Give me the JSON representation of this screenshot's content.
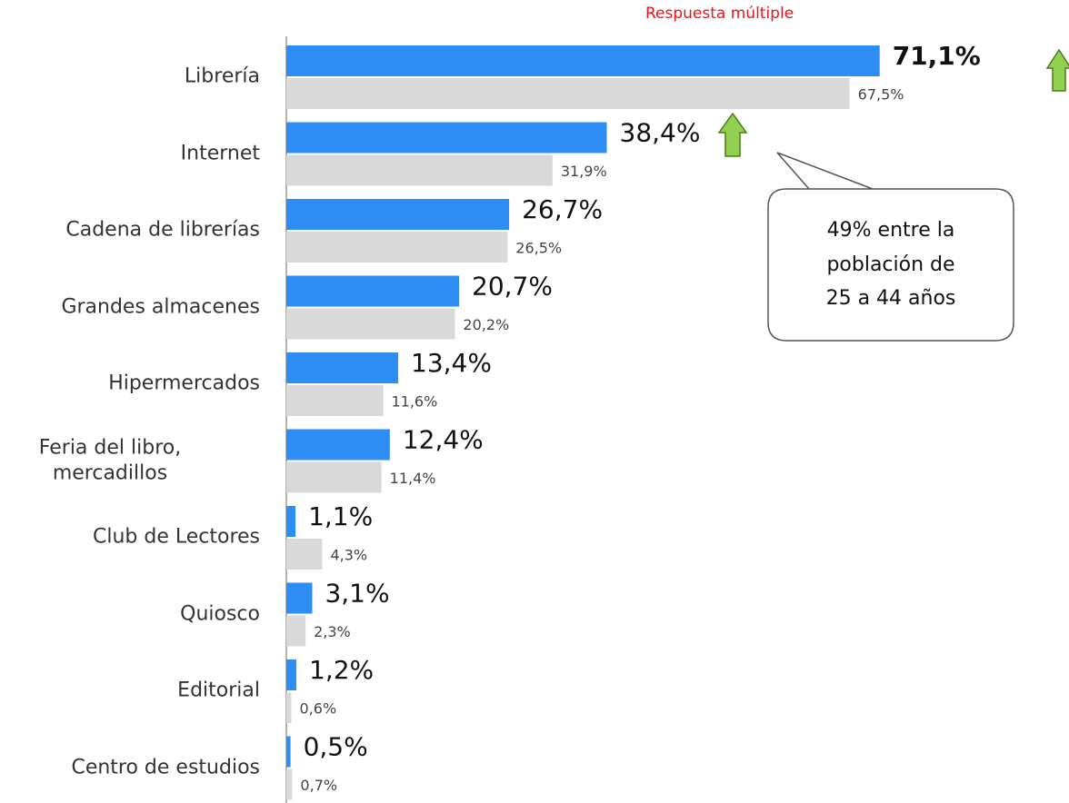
{
  "chart_data": {
    "type": "barh",
    "annotations": [
      "Respuesta múltiple",
      "49% entre la\npoblación de\n25 a 44 años"
    ],
    "categories": [
      "Librería",
      "Internet",
      "Cadena de librerías",
      "Grandes almacenes",
      "Hipermercados",
      "Feria del libro,\nmercadillos",
      "Club de Lectores",
      "Quiosco",
      "Editorial",
      "Centro de estudios"
    ],
    "series": [
      {
        "color": "#2e8cf5",
        "values": [
          71.1,
          38.4,
          26.7,
          20.7,
          13.4,
          12.4,
          1.1,
          3.1,
          1.2,
          0.5
        ],
        "value_labels": [
          "71,1%",
          "38,4%",
          "26,7%",
          "20,7%",
          "13,4%",
          "12,4%",
          "1,1%",
          "3,1%",
          "1,2%",
          "0,5%"
        ]
      },
      {
        "color": "#d9d9d9",
        "values": [
          67.5,
          31.9,
          26.5,
          20.2,
          11.6,
          11.4,
          4.3,
          2.3,
          0.6,
          0.7
        ],
        "value_labels": [
          "67,5%",
          "31,9%",
          "26,5%",
          "20,2%",
          "11,6%",
          "11,4%",
          "4,3%",
          "2,3%",
          "0,6%",
          "0,7%"
        ]
      }
    ]
  }
}
